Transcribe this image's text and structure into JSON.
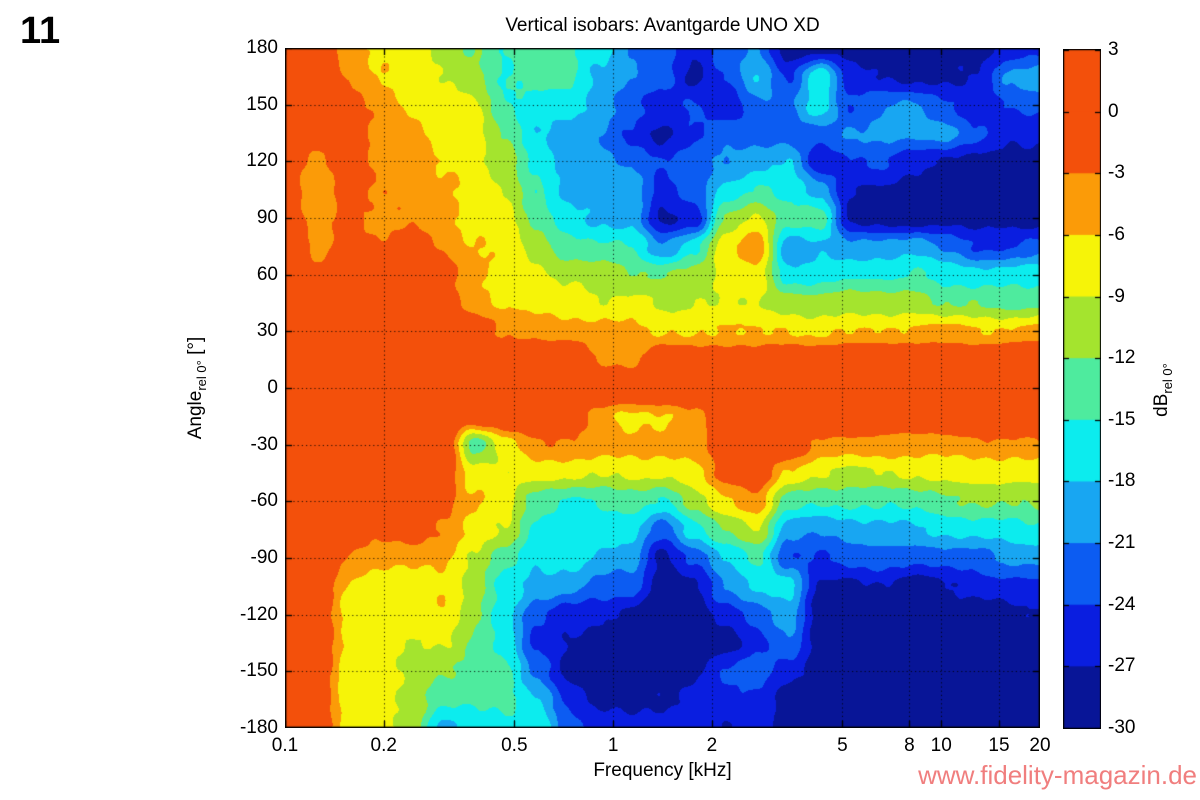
{
  "figure_number": "11",
  "watermark": "www.fidelity-magazin.de",
  "style": {
    "watermark_color": "#f07e7e",
    "axis_color": "#000000",
    "background": "#ffffff"
  },
  "chart_data": {
    "type": "heatmap",
    "title": "Vertical isobars: Avantgarde  UNO XD",
    "x_label": "Frequency [kHz]",
    "y_label": {
      "main": "Angle",
      "sub": "rel 0°",
      "unit": " [°]"
    },
    "x_scale": "log",
    "x_range_khz": [
      0.1,
      20
    ],
    "y_range_deg": [
      -180,
      180
    ],
    "grid": "dotted",
    "x_ticks": [
      {
        "label": "0.1",
        "khz": 0.1
      },
      {
        "label": "0.2",
        "khz": 0.2
      },
      {
        "label": "0.5",
        "khz": 0.5
      },
      {
        "label": "1",
        "khz": 1
      },
      {
        "label": "2",
        "khz": 2
      },
      {
        "label": "5",
        "khz": 5
      },
      {
        "label": "8",
        "khz": 8
      },
      {
        "label": "10",
        "khz": 10
      },
      {
        "label": "15",
        "khz": 15
      },
      {
        "label": "20",
        "khz": 20
      }
    ],
    "y_ticks": [
      {
        "label": "180",
        "deg": 180
      },
      {
        "label": "150",
        "deg": 150
      },
      {
        "label": "120",
        "deg": 120
      },
      {
        "label": "90",
        "deg": 90
      },
      {
        "label": "60",
        "deg": 60
      },
      {
        "label": "30",
        "deg": 30
      },
      {
        "label": "0",
        "deg": 0
      },
      {
        "label": "-30",
        "deg": -30
      },
      {
        "label": "-60",
        "deg": -60
      },
      {
        "label": "-90",
        "deg": -90
      },
      {
        "label": "-120",
        "deg": -120
      },
      {
        "label": "-150",
        "deg": -150
      },
      {
        "label": "-180",
        "deg": -180
      }
    ],
    "colorbar": {
      "label": {
        "main": "dB",
        "sub": "rel 0°"
      },
      "ticks": [
        "3",
        "0",
        "-3",
        "-6",
        "-9",
        "-12",
        "-15",
        "-18",
        "-21",
        "-24",
        "-27",
        "-30"
      ],
      "tick_values_db": [
        3,
        0,
        -3,
        -6,
        -9,
        -12,
        -15,
        -18,
        -21,
        -24,
        -27,
        -30
      ],
      "segment_colors_top_to_bottom": [
        "#f3500b",
        "#f3500b",
        "#fb9b08",
        "#f6f408",
        "#a4e42e",
        "#4eeb9e",
        "#0cecee",
        "#18a6f2",
        "#0c5cf2",
        "#0a1ee0",
        "#081597"
      ]
    },
    "grid_freq_khz": [
      0.1,
      0.125,
      0.155,
      0.19,
      0.24,
      0.3,
      0.38,
      0.47,
      0.59,
      0.73,
      0.91,
      1.13,
      1.42,
      1.77,
      2.2,
      2.75,
      3.43,
      4.27,
      5.33,
      6.65,
      8.3,
      10.35,
      12.9,
      16.1,
      20
    ],
    "grid_angle_deg": [
      180,
      165,
      150,
      135,
      120,
      105,
      90,
      75,
      60,
      45,
      30,
      15,
      0,
      -15,
      -30,
      -45,
      -60,
      -75,
      -90,
      -105,
      -120,
      -135,
      -150,
      -165,
      -180
    ],
    "grid_values_db_rel0": [
      [
        2,
        2,
        -4,
        -6.5,
        -7.5,
        -10.5,
        -12.5,
        -16,
        -13,
        -13.5,
        -16.5,
        -21,
        -22,
        -27,
        -23,
        -21,
        -28,
        -28,
        -28,
        -28,
        -29,
        -29,
        -28,
        -26,
        -25
      ],
      [
        2,
        2,
        -3.5,
        -6,
        -7.5,
        -9.5,
        -11,
        -15.5,
        -14,
        -14,
        -19,
        -20,
        -22,
        -28,
        -24,
        -18,
        -24,
        -15,
        -26,
        -27,
        -28,
        -28,
        -27,
        -21,
        -20
      ],
      [
        2,
        1,
        -3,
        -4.5,
        -6.5,
        -8,
        -8.5,
        -14,
        -16,
        -17,
        -20,
        -23,
        -26,
        -24,
        -26,
        -21,
        -22,
        -16,
        -24,
        -22,
        -21,
        -23,
        -25,
        -24,
        -23
      ],
      [
        1,
        -2,
        -1,
        -4,
        -5,
        -7.5,
        -8,
        -12.5,
        -17,
        -19,
        -21,
        -24,
        -28,
        -25,
        -22,
        -23,
        -22,
        -23,
        -21,
        -20,
        -21,
        -20,
        -23,
        -27,
        -26
      ],
      [
        0,
        -4,
        -1.5,
        -4,
        -4,
        -7,
        -7.5,
        -10,
        -16,
        -20,
        -20,
        -21,
        -24,
        -22,
        -20,
        -19,
        -18,
        -26,
        -25,
        -24,
        -26,
        -27,
        -28,
        -29,
        -29
      ],
      [
        0,
        -5,
        -2,
        -4,
        -4,
        -5,
        -7,
        -8.5,
        -14,
        -19,
        -20,
        -19,
        -26,
        -23,
        -17,
        -14,
        -16,
        -20,
        -27,
        -28,
        -29,
        -29,
        -29,
        -29,
        -29
      ],
      [
        0,
        -5,
        -2,
        -3.5,
        -3.5,
        -4,
        -6.5,
        -8,
        -13,
        -17,
        -18,
        -19,
        -28,
        -26,
        -12,
        -9,
        -13.5,
        -14,
        -28,
        -28,
        -29,
        -28,
        -29,
        -28,
        -28
      ],
      [
        0,
        -4,
        -1,
        -2,
        -1,
        -3.5,
        -6,
        -7.5,
        -11,
        -13,
        -14,
        -15,
        -20,
        -16,
        -8,
        -4,
        -19.5,
        -18,
        -20,
        -19,
        -18.5,
        -22,
        -25,
        -24,
        -23
      ],
      [
        1,
        -2,
        0,
        0,
        1,
        -1,
        -5,
        -7.5,
        -8,
        -9.5,
        -10,
        -11,
        -12,
        -11,
        -8,
        -7,
        -16.5,
        -16.5,
        -16,
        -15.5,
        -15,
        -16,
        -17,
        -17,
        -16.5
      ],
      [
        2,
        1,
        1,
        2,
        2,
        0.5,
        -4,
        -7,
        -7.5,
        -7.5,
        -8,
        -8,
        -9,
        -8.5,
        -9,
        -10,
        -10.5,
        -11,
        -10.5,
        -10,
        -9.5,
        -12.5,
        -13,
        -13,
        -12.5
      ],
      [
        2,
        2,
        2,
        2,
        2,
        2,
        0,
        -4,
        -4,
        -4,
        -4.5,
        -5,
        -5.5,
        -6.5,
        -6,
        -6,
        -5.5,
        -6,
        -6,
        -5.5,
        -5.5,
        -5.5,
        -6,
        -6,
        -5.5
      ],
      [
        2,
        2,
        2,
        2,
        2,
        2,
        2,
        1,
        1,
        1,
        -3.5,
        -3.5,
        1,
        0.5,
        0.5,
        0,
        1,
        1,
        1,
        1,
        1,
        1,
        1,
        1,
        1
      ],
      [
        2,
        2,
        2,
        2,
        2,
        2,
        2,
        2,
        2,
        2,
        2,
        2,
        2,
        2,
        2,
        2,
        2,
        2,
        2,
        2,
        2,
        2,
        2,
        2,
        2
      ],
      [
        2,
        2,
        2,
        2,
        2,
        2,
        1,
        1,
        1,
        1,
        -4,
        -6.5,
        -6.5,
        -4,
        0,
        2,
        2,
        1,
        1,
        1,
        1,
        1,
        1,
        1,
        1
      ],
      [
        2,
        2,
        2,
        2,
        2,
        2,
        -13,
        -7,
        -4,
        -4,
        -4.5,
        -5,
        -5,
        -4,
        1,
        1,
        0,
        -3.5,
        -4.5,
        -4.5,
        -4,
        -4,
        -4,
        -4,
        -3.5
      ],
      [
        2,
        2,
        2,
        2,
        2,
        1,
        -8,
        -8.5,
        -7.5,
        -8,
        -8.5,
        -8.5,
        -9,
        -7,
        -2,
        0,
        -6.5,
        -9.5,
        -9.5,
        -9,
        -8.5,
        -8,
        -8,
        -7.5,
        -7
      ],
      [
        2,
        1,
        1,
        1,
        1,
        -1,
        -5,
        -8.5,
        -14.5,
        -15,
        -14,
        -13.5,
        -15,
        -10,
        -7,
        -5,
        -13.5,
        -14.5,
        -14.5,
        -14,
        -13.5,
        -13,
        -12.5,
        -12,
        -11.5
      ],
      [
        1,
        1,
        0,
        -2,
        -1,
        -4,
        -7,
        -9.5,
        -16.5,
        -16.5,
        -16.5,
        -17,
        -22,
        -16,
        -12,
        -9,
        -19.5,
        -20,
        -19,
        -18.5,
        -18,
        -17.5,
        -17,
        -16.5,
        -16
      ],
      [
        1,
        1,
        -4,
        -5,
        -5,
        -6,
        -9,
        -13,
        -17.5,
        -17.5,
        -19,
        -19,
        -28,
        -23,
        -17,
        -14,
        -24,
        -24,
        -23.5,
        -23,
        -23,
        -22,
        -22,
        -21,
        -20.5
      ],
      [
        1,
        1,
        -6.5,
        -7.5,
        -7.5,
        -6.5,
        -10,
        -16,
        -19.5,
        -20,
        -22,
        -23,
        -29,
        -27,
        -21,
        -18,
        -17,
        -27,
        -28,
        -27,
        -28,
        -27,
        -26,
        -25,
        -24.5
      ],
      [
        1,
        1,
        -7.5,
        -8,
        -8,
        -7,
        -11.5,
        -17,
        -23,
        -26,
        -27,
        -28,
        -29,
        -29,
        -25,
        -22,
        -19,
        -28,
        -29,
        -29,
        -29,
        -29,
        -29,
        -28,
        -28
      ],
      [
        1,
        1,
        -7.5,
        -8,
        -8.5,
        -8.5,
        -12,
        -15,
        -25,
        -28,
        -29,
        -29,
        -29,
        -29,
        -28,
        -25,
        -22,
        -29,
        -29,
        -29,
        -29,
        -29,
        -29,
        -29,
        -29
      ],
      [
        1,
        1,
        -7.5,
        -8,
        -9,
        -11,
        -13.5,
        -14,
        -22,
        -28,
        -29,
        -29,
        -28,
        -28,
        -24,
        -22,
        -26,
        -29,
        -29,
        -29,
        -29,
        -29,
        -29,
        -29,
        -29
      ],
      [
        1,
        0,
        -7,
        -7.5,
        -10,
        -14,
        -14.5,
        -15,
        -18,
        -24,
        -27,
        -28,
        -27,
        -26,
        -26,
        -25,
        -28,
        -29,
        -29,
        -29,
        -29,
        -29,
        -29,
        -29,
        -29
      ],
      [
        1,
        0,
        -7,
        -7.5,
        -9.5,
        -19.5,
        -16.5,
        -16,
        -16,
        -23,
        -25,
        -26,
        -25,
        -24,
        -27,
        -26,
        -29,
        -29,
        -29,
        -29,
        -29,
        -29,
        -29,
        -29,
        -29
      ]
    ]
  }
}
